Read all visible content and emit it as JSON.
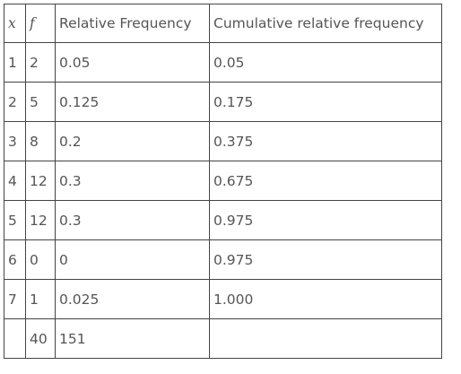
{
  "table": {
    "headers": [
      "x",
      "f",
      "Relative Frequency",
      "Cumulative relative frequency"
    ],
    "rows": [
      [
        "1",
        "2",
        "0.05",
        "0.05"
      ],
      [
        "2",
        "5",
        "0.125",
        "0.175"
      ],
      [
        "3",
        "8",
        "0.2",
        "0.375"
      ],
      [
        "4",
        "12",
        "0.3",
        "0.675"
      ],
      [
        "5",
        "12",
        "0.3",
        "0.975"
      ],
      [
        "6",
        "0",
        "0",
        "0.975"
      ],
      [
        "7",
        "1",
        "0.025",
        "1.000"
      ],
      [
        "",
        "40",
        "151",
        ""
      ]
    ]
  }
}
